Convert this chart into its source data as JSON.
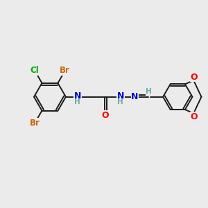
{
  "bg_color": "#ebebeb",
  "bond_color": "#1a1a1a",
  "bond_lw": 1.4,
  "atom_colors": {
    "C": "#1a1a1a",
    "N": "#0000cc",
    "O": "#ff0000",
    "Br": "#cc6600",
    "Cl": "#00aa00",
    "H": "#6aacac"
  },
  "font_size": 8.5,
  "fig_w": 3.0,
  "fig_h": 3.0,
  "dpi": 100
}
